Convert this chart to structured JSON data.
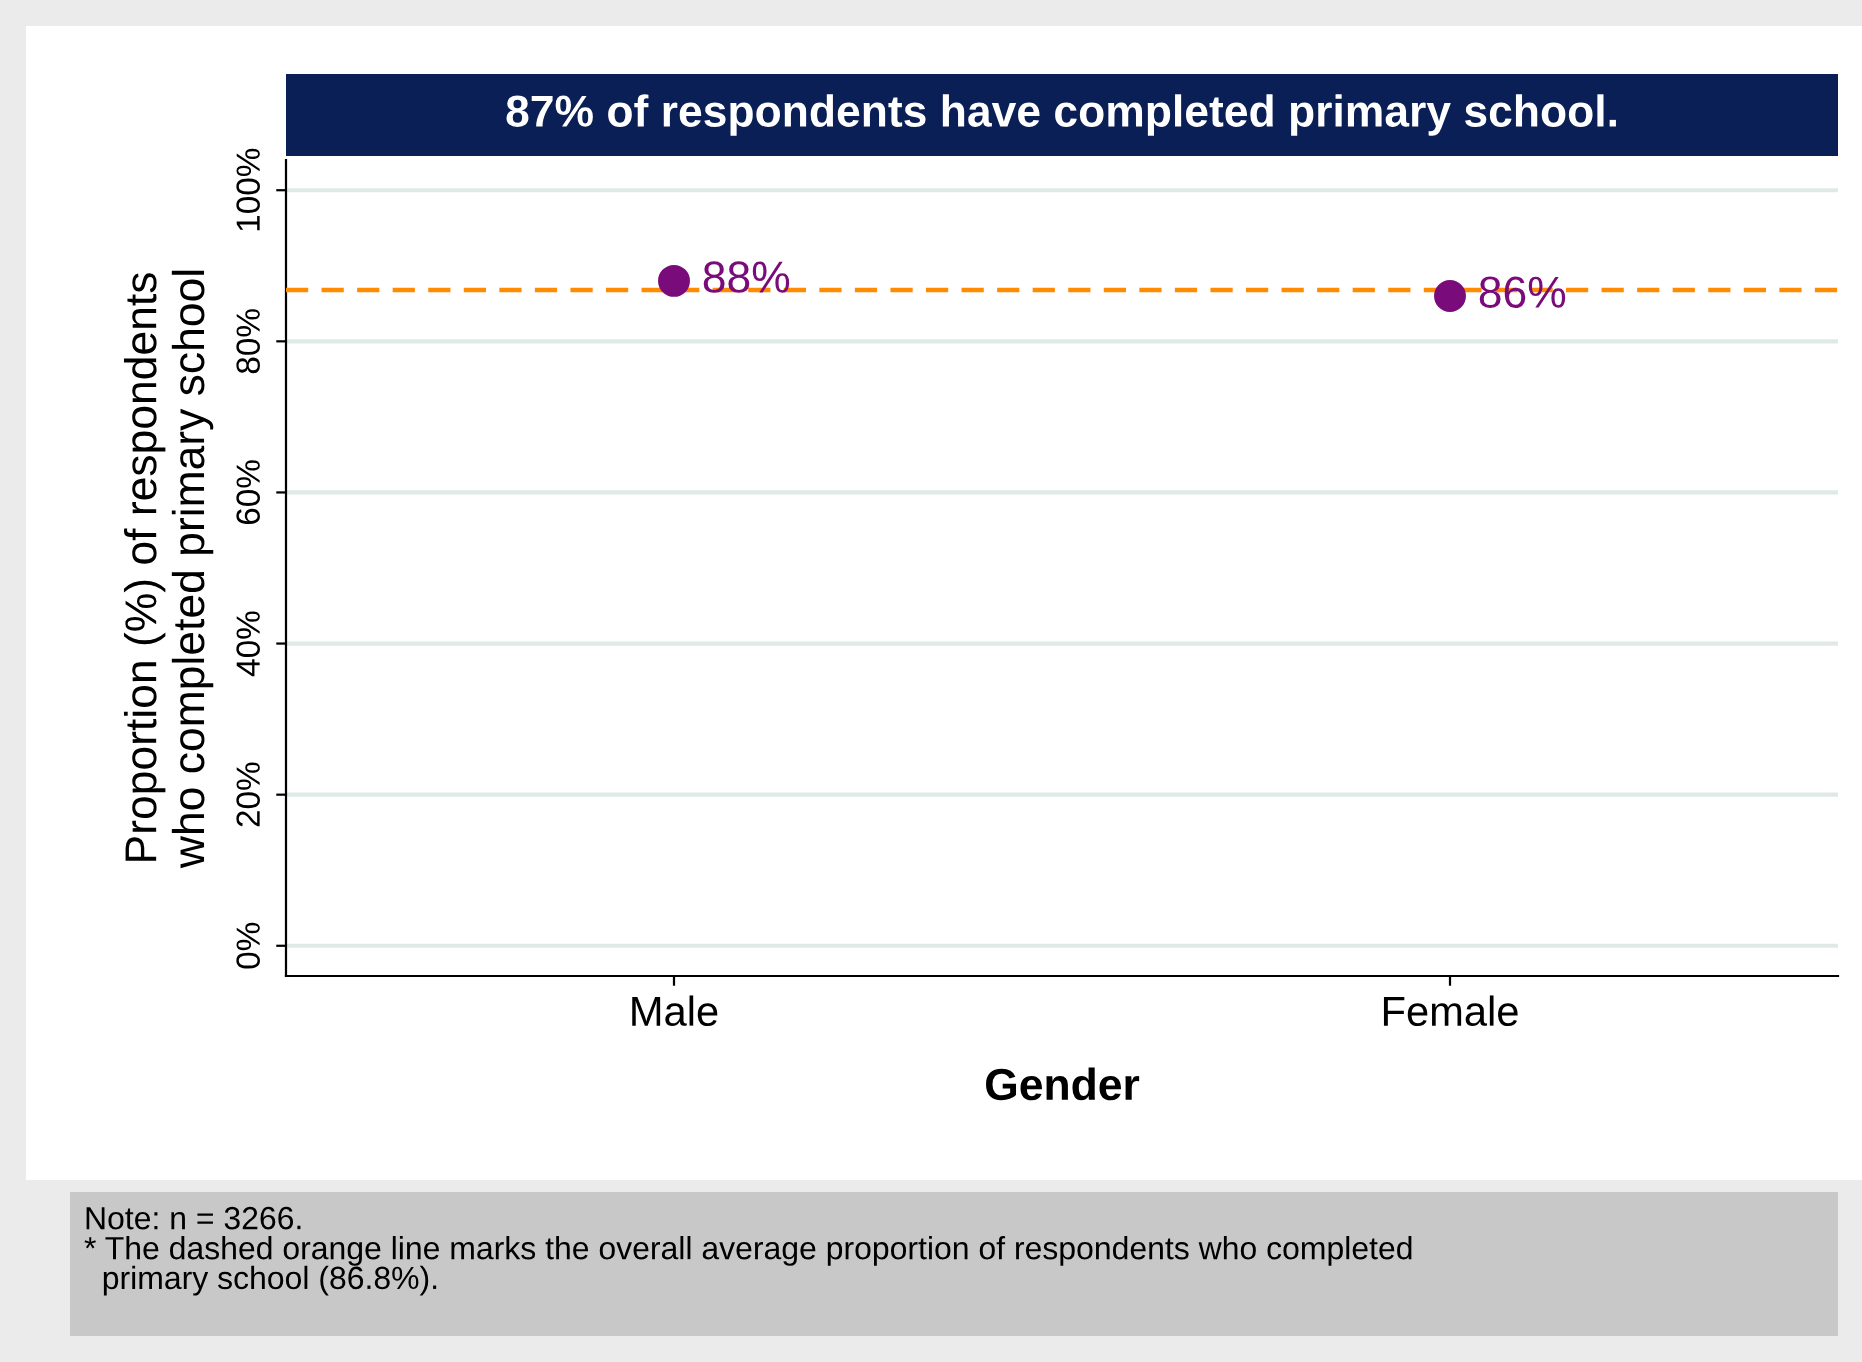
{
  "chart_data": {
    "type": "scatter",
    "title": "87% of respondents have completed primary school.",
    "xlabel": "Gender",
    "ylabel": "Proportion (%) of respondents\nwho completed primary school",
    "categories": [
      "Male",
      "Female"
    ],
    "series": [
      {
        "color": "#7a0b7a",
        "values": [
          88,
          86
        ],
        "value_labels": [
          "88%",
          "86%"
        ]
      }
    ],
    "marker": "circle",
    "ylim": [
      -4,
      104
    ],
    "yticks": [
      {
        "value": 0,
        "label": "0%"
      },
      {
        "value": 20,
        "label": "20%"
      },
      {
        "value": 40,
        "label": "40%"
      },
      {
        "value": 60,
        "label": "60%"
      },
      {
        "value": 80,
        "label": "80%"
      },
      {
        "value": 100,
        "label": "100%"
      }
    ],
    "grid": "y",
    "ref_lines": [
      {
        "axis": "y",
        "value": 86.8,
        "color": "#ff8c00",
        "line_style": "dashed"
      }
    ],
    "annotations": [
      "Note: n = 3266.",
      "* The dashed orange line marks the overall average proportion of respondents who completed\n  primary school (86.8%)."
    ]
  }
}
